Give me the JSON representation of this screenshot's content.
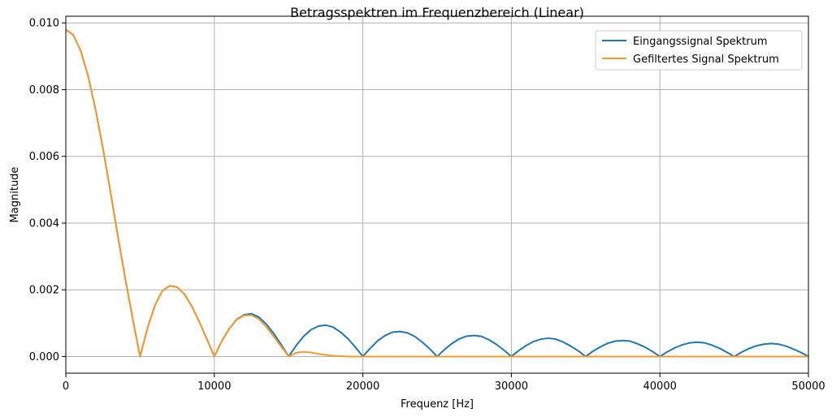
{
  "chart_data": {
    "type": "line",
    "title": "Betragsspektren im Frequenzbereich (Linear)",
    "xlabel": "Frequenz [Hz]",
    "ylabel": "Magnitude",
    "xlim": [
      0,
      50000
    ],
    "ylim": [
      -0.0005,
      0.0102
    ],
    "x_ticks": [
      0,
      10000,
      20000,
      30000,
      40000,
      50000
    ],
    "x_tick_labels": [
      "0",
      "10000",
      "20000",
      "30000",
      "40000",
      "50000"
    ],
    "y_ticks": [
      0.0,
      0.002,
      0.004,
      0.006,
      0.008,
      0.01
    ],
    "y_tick_labels": [
      "0.000",
      "0.002",
      "0.004",
      "0.006",
      "0.008",
      "0.010"
    ],
    "grid": true,
    "legend_position": "top-right",
    "series": [
      {
        "name": "Eingangssignal Spektrum",
        "color": "#1f77b4",
        "x": [
          0,
          500,
          1000,
          1500,
          2000,
          2500,
          3000,
          3500,
          4000,
          4500,
          5000,
          5500,
          6000,
          6500,
          7000,
          7500,
          8000,
          8500,
          9000,
          9500,
          10000,
          10500,
          11000,
          11500,
          12000,
          12500,
          13000,
          13500,
          14000,
          14500,
          15000,
          15500,
          16000,
          16500,
          17000,
          17500,
          18000,
          18500,
          19000,
          19500,
          20000,
          20500,
          21000,
          21500,
          22000,
          22500,
          23000,
          23500,
          24000,
          24500,
          25000,
          25500,
          26000,
          26500,
          27000,
          27500,
          28000,
          28500,
          29000,
          29500,
          30000,
          30500,
          31000,
          31500,
          32000,
          32500,
          33000,
          33500,
          34000,
          34500,
          35000,
          35500,
          36000,
          36500,
          37000,
          37500,
          38000,
          38500,
          39000,
          39500,
          40000,
          40500,
          41000,
          41500,
          42000,
          42500,
          43000,
          43500,
          44000,
          44500,
          45000,
          45500,
          46000,
          46500,
          47000,
          47500,
          48000,
          48500,
          49000,
          49500,
          50000
        ],
        "y": [
          0.0098,
          0.00964,
          0.00917,
          0.00841,
          0.00741,
          0.00624,
          0.00495,
          0.00363,
          0.00234,
          0.00114,
          0.0,
          0.00085,
          0.00153,
          0.00197,
          0.00212,
          0.00208,
          0.00186,
          0.00149,
          0.00103,
          0.00052,
          0.0,
          0.00046,
          0.00083,
          0.00111,
          0.00125,
          0.00128,
          0.00118,
          0.00097,
          0.00069,
          0.00036,
          0.0,
          0.00032,
          0.0006,
          0.0008,
          0.00091,
          0.00094,
          0.00088,
          0.00073,
          0.00053,
          0.00028,
          0.0,
          0.00025,
          0.00047,
          0.00063,
          0.00073,
          0.00075,
          0.00071,
          0.0006,
          0.00043,
          0.00023,
          0.0,
          0.00021,
          0.00039,
          0.00053,
          0.00061,
          0.00063,
          0.0006,
          0.0005,
          0.00036,
          0.00019,
          0.0,
          0.00018,
          0.00033,
          0.00045,
          0.00052,
          0.00055,
          0.00052,
          0.00043,
          0.00031,
          0.00017,
          0.0,
          0.00016,
          0.00029,
          0.0004,
          0.00046,
          0.00048,
          0.00046,
          0.00038,
          0.00028,
          0.00015,
          0.0,
          0.00014,
          0.00026,
          0.00035,
          0.00041,
          0.00043,
          0.00041,
          0.00034,
          0.00025,
          0.00013,
          0.0,
          0.00013,
          0.00024,
          0.00032,
          0.00037,
          0.00039,
          0.00037,
          0.00031,
          0.00022,
          0.00012,
          0.0
        ]
      },
      {
        "name": "Gefiltertes Signal Spektrum",
        "color": "#f59a2f",
        "x": [
          0,
          500,
          1000,
          1500,
          2000,
          2500,
          3000,
          3500,
          4000,
          4500,
          5000,
          5500,
          6000,
          6500,
          7000,
          7500,
          8000,
          8500,
          9000,
          9500,
          10000,
          10500,
          11000,
          11500,
          12000,
          12500,
          13000,
          13500,
          14000,
          14500,
          15000,
          15500,
          16000,
          16500,
          17000,
          17500,
          18000,
          18500,
          19000,
          20000,
          30000,
          40000,
          50000
        ],
        "y": [
          0.0098,
          0.00964,
          0.00917,
          0.00841,
          0.00741,
          0.00624,
          0.00495,
          0.00363,
          0.00234,
          0.00114,
          0.0,
          0.00085,
          0.00153,
          0.00197,
          0.00212,
          0.00208,
          0.00186,
          0.00149,
          0.00103,
          0.00052,
          0.0,
          0.00046,
          0.00083,
          0.0011,
          0.00123,
          0.00124,
          0.00112,
          0.00089,
          0.0006,
          0.0003,
          0.0,
          0.00011,
          0.00014,
          0.00012,
          8e-05,
          5e-05,
          2e-05,
          1e-05,
          0.0,
          0.0,
          0.0,
          0.0,
          0.0
        ]
      }
    ]
  }
}
